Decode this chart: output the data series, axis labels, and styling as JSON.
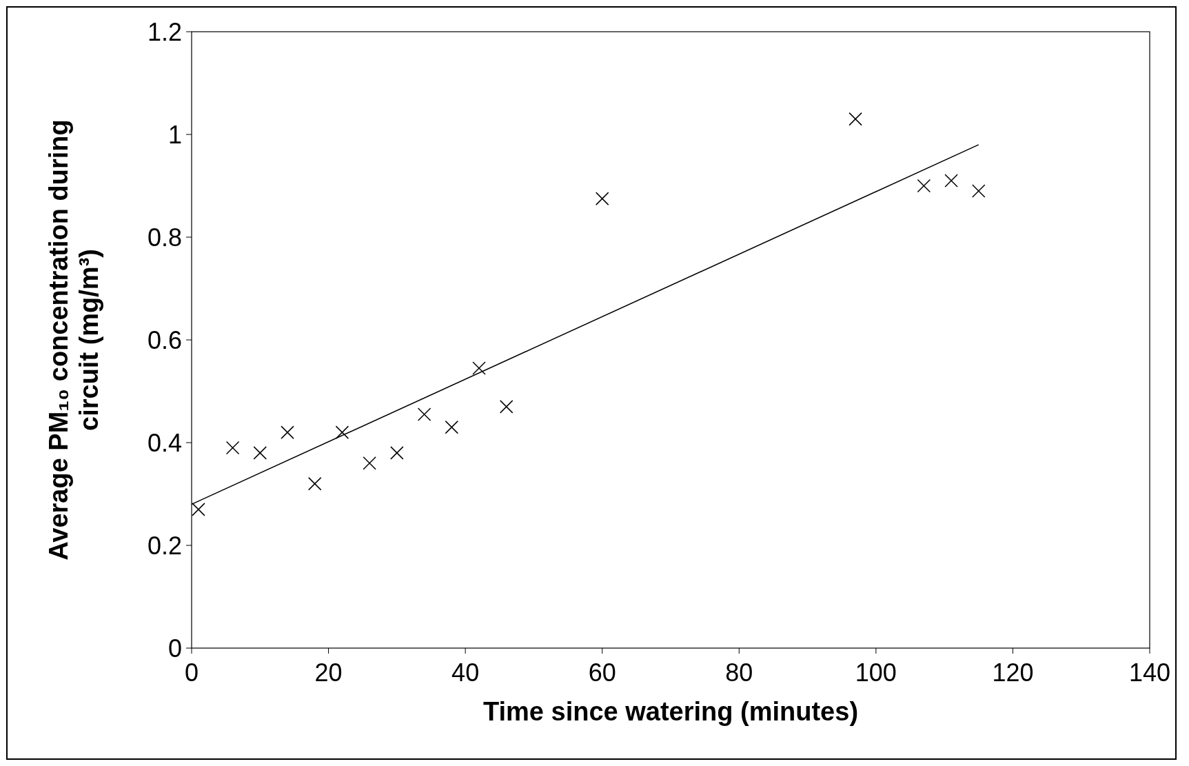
{
  "chart_data": {
    "type": "scatter",
    "xlabel": "Time since watering (minutes)",
    "ylabel": "Average PM₁₀ concentration during circuit (mg/m³)",
    "series": [
      {
        "color": "#000000",
        "marker": "cross",
        "x": [
          1,
          6,
          10,
          14,
          18,
          22,
          26,
          30,
          34,
          38,
          42,
          46,
          60,
          97,
          107,
          111,
          115
        ],
        "values": [
          0.27,
          0.39,
          0.38,
          0.42,
          0.32,
          0.42,
          0.36,
          0.38,
          0.455,
          0.43,
          0.545,
          0.47,
          0.875,
          1.03,
          0.9,
          0.91,
          0.89
        ]
      },
      {
        "type": "line",
        "color": "#000000",
        "line_style": "solid",
        "x": [
          0,
          115
        ],
        "values": [
          0.28,
          0.98
        ]
      }
    ],
    "xlim": [
      0,
      140
    ],
    "xticks": [
      0,
      20,
      40,
      60,
      80,
      100,
      120,
      140
    ],
    "ylim": [
      0,
      1.2
    ],
    "yticks": [
      0,
      0.2,
      0.4,
      0.6,
      0.8,
      1,
      1.2
    ],
    "grid": false
  }
}
